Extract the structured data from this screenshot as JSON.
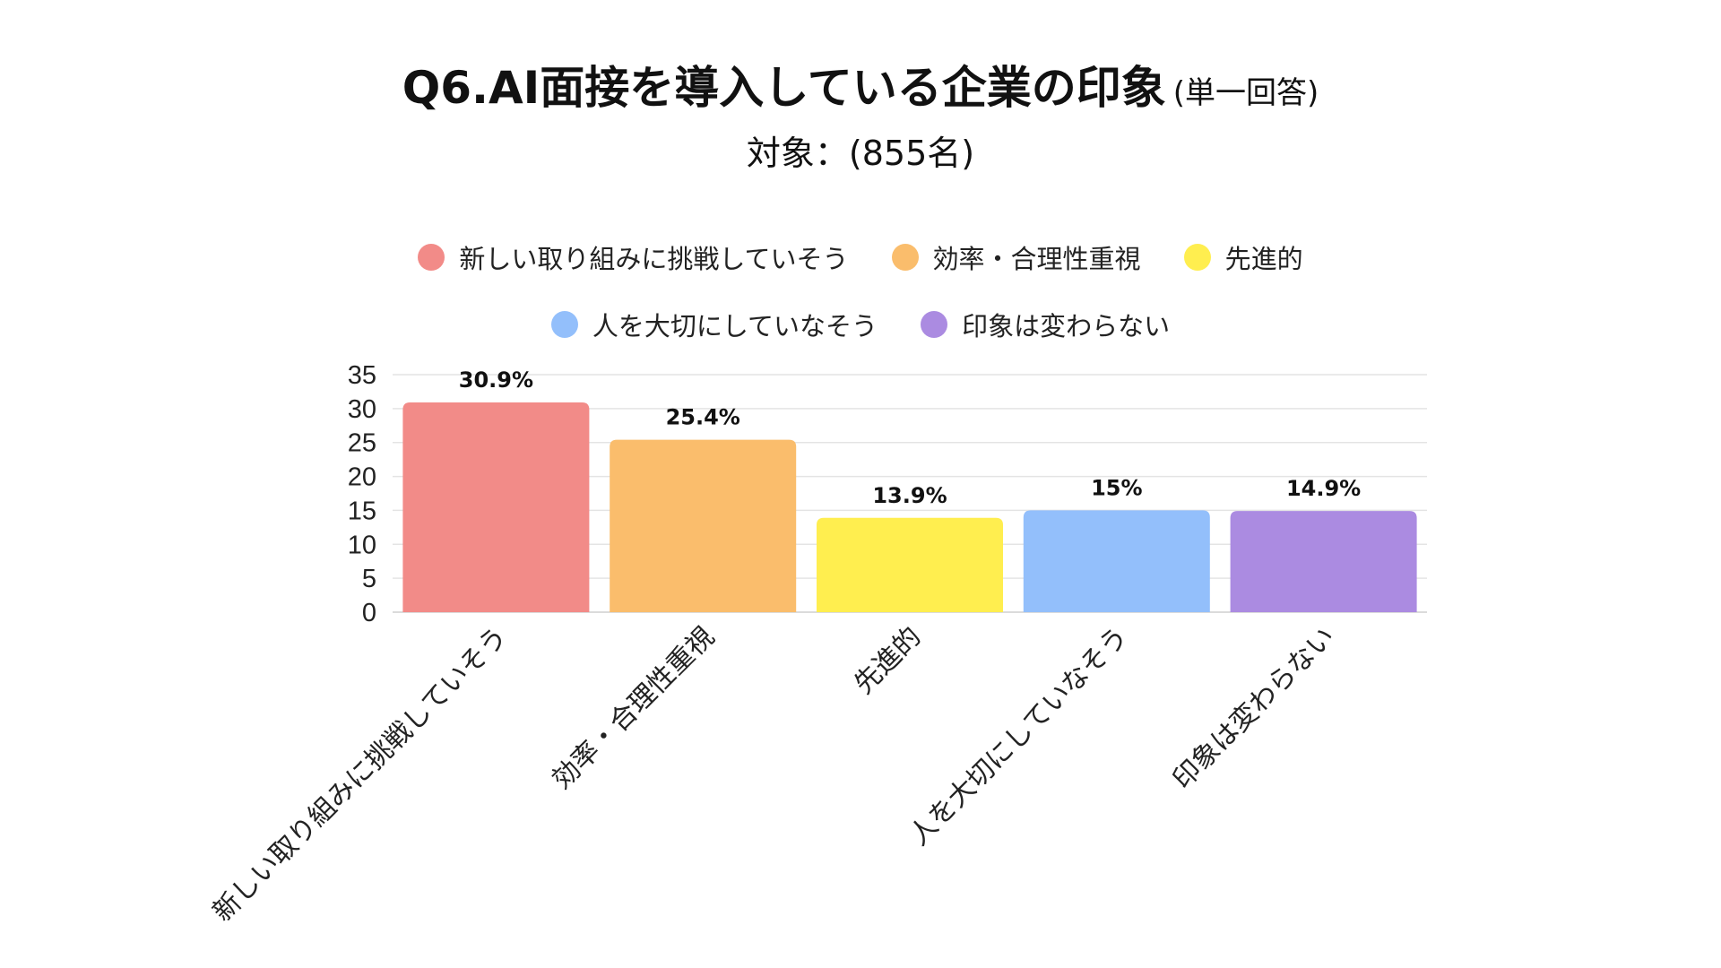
{
  "header": {
    "title": "Q6.AI面接を導入している企業の印象",
    "title_suffix": "(単一回答)",
    "subtitle": "対象：(855名)"
  },
  "legend": {
    "row1": [
      {
        "label": "新しい取り組みに挑戦していそう",
        "color": "#F28B88"
      },
      {
        "label": "効率・合理性重視",
        "color": "#FABD6C"
      },
      {
        "label": "先進的",
        "color": "#FFEE4F"
      }
    ],
    "row2": [
      {
        "label": "人を大切にしていなそう",
        "color": "#93BFFB"
      },
      {
        "label": "印象は変わらない",
        "color": "#AB8BE1"
      }
    ]
  },
  "chart_data": {
    "type": "bar",
    "title": "Q6.AI面接を導入している企業の印象",
    "subtitle": "対象：(855名)",
    "categories": [
      "新しい取り組みに挑戦していそう",
      "効率・合理性重視",
      "先進的",
      "人を大切にしていなそう",
      "印象は変わらない"
    ],
    "values": [
      30.9,
      25.4,
      13.9,
      15,
      14.9
    ],
    "data_labels": [
      "30.9%",
      "25.4%",
      "13.9%",
      "15%",
      "14.9%"
    ],
    "colors": [
      "#F28B88",
      "#FABD6C",
      "#FFEE4F",
      "#93BFFB",
      "#AB8BE1"
    ],
    "ylim": [
      0,
      35
    ],
    "yticks": [
      0,
      5,
      10,
      15,
      20,
      25,
      30,
      35
    ],
    "xlabel": "",
    "ylabel": "",
    "grid": true,
    "legend_position": "top-center"
  }
}
